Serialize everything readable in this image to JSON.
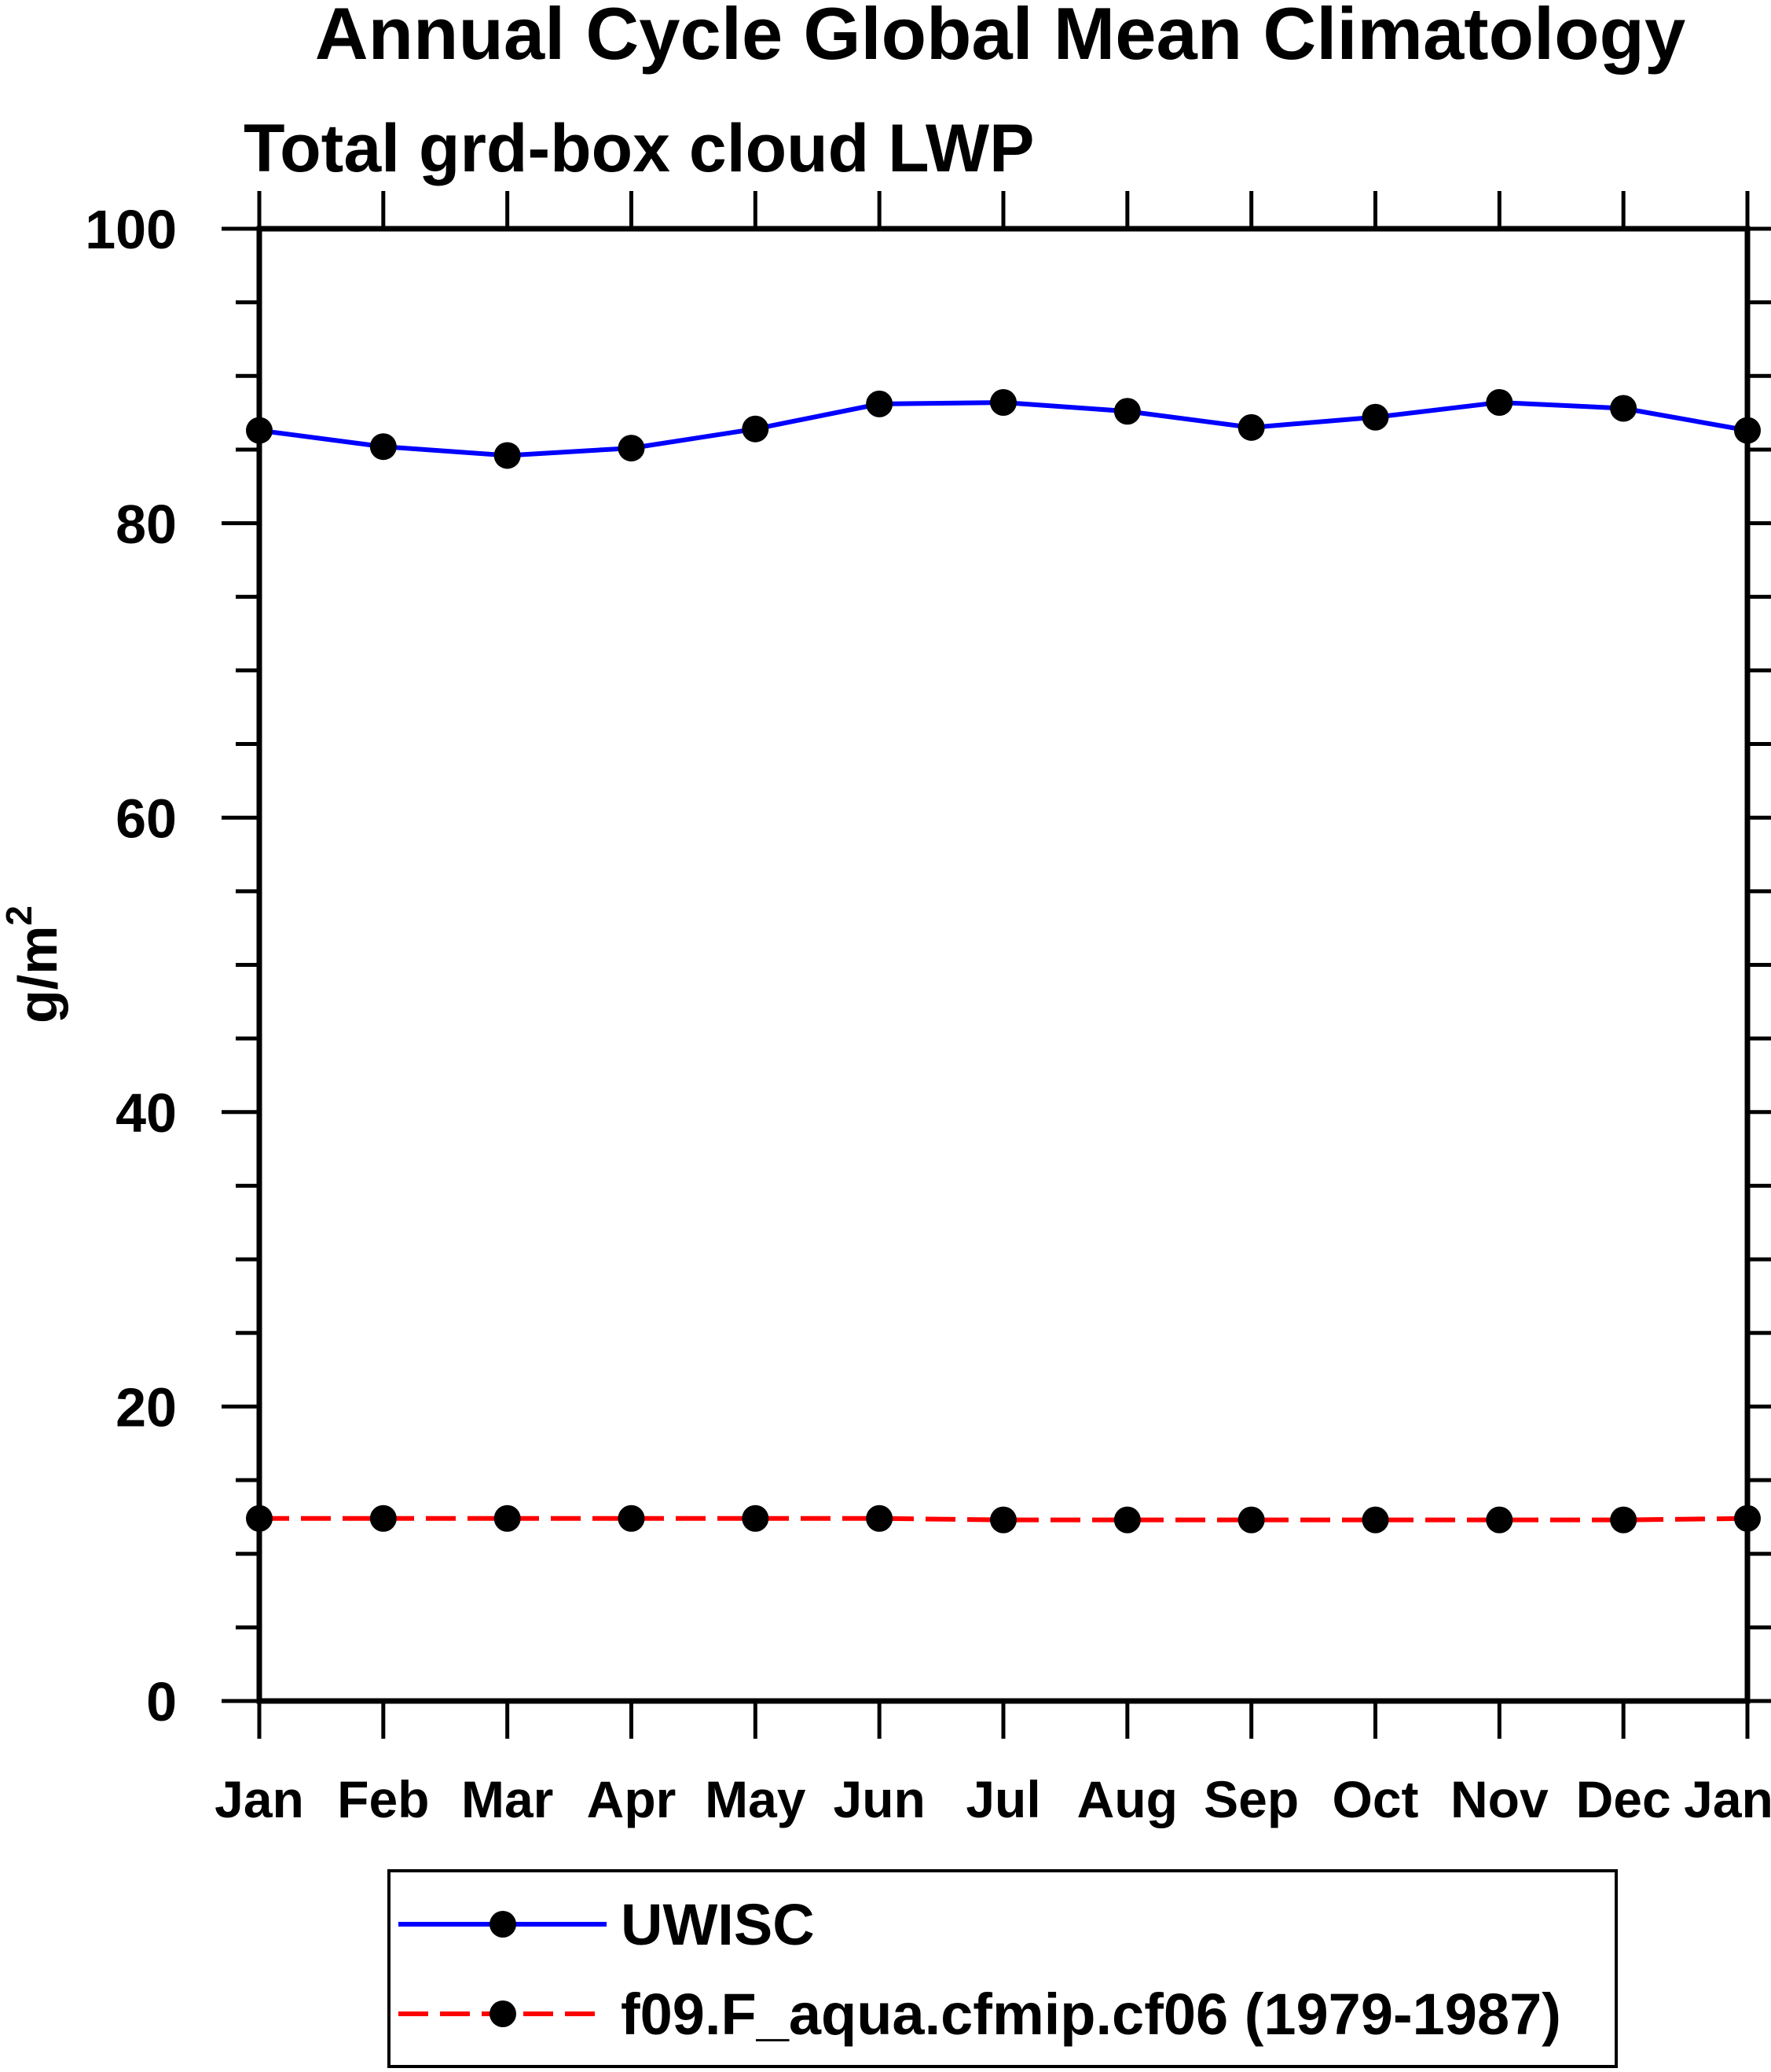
{
  "chart_data": {
    "type": "line",
    "title": "Annual Cycle Global Mean Climatology",
    "subtitle": "Total grd-box cloud LWP",
    "ylabel": "g/m²",
    "ylabel_base": "g/m",
    "ylabel_sup": "2",
    "x_categories": [
      "Jan",
      "Feb",
      "Mar",
      "Apr",
      "May",
      "Jun",
      "Jul",
      "Aug",
      "Sep",
      "Oct",
      "Nov",
      "Dec",
      "Jan"
    ],
    "ylim": [
      0,
      100
    ],
    "y_major_tick_interval": 20,
    "y_minor_tick_interval": 5,
    "y_tick_labels": [
      "0",
      "20",
      "40",
      "60",
      "80",
      "100"
    ],
    "grid": false,
    "legend_position": "bottom-left-box",
    "series": [
      {
        "name": "UWISC",
        "line_color": "#0000ff",
        "line_style": "solid",
        "marker": "filled-circle",
        "marker_color": "#000000",
        "values": [
          86.3,
          85.2,
          84.6,
          85.1,
          86.4,
          88.1,
          88.2,
          87.6,
          86.5,
          87.2,
          88.2,
          87.8,
          86.3
        ]
      },
      {
        "name": "f09.F_aqua.cfmip.cf06 (1979-1987)",
        "line_color": "#ff0000",
        "line_style": "dashed",
        "marker": "filled-circle",
        "marker_color": "#000000",
        "values": [
          12.4,
          12.4,
          12.4,
          12.4,
          12.4,
          12.4,
          12.3,
          12.3,
          12.3,
          12.3,
          12.3,
          12.3,
          12.4
        ]
      }
    ]
  }
}
